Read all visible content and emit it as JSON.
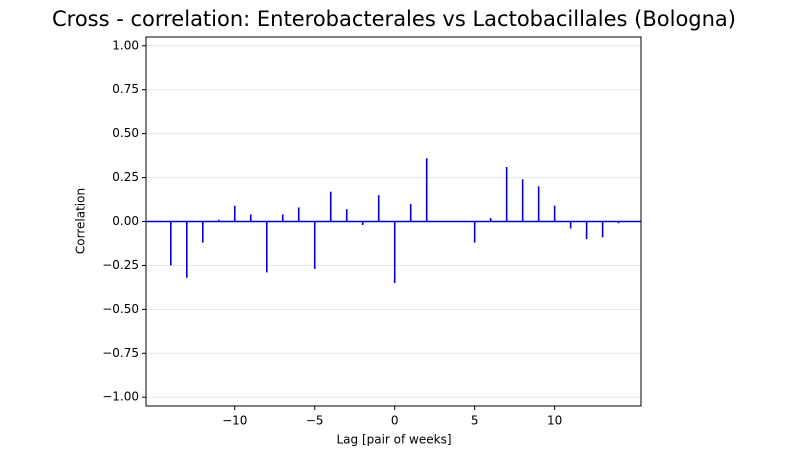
{
  "chart_data": {
    "type": "stem",
    "title": "Cross - correlation: Enterobacterales vs Lactobacillales (Bologna)",
    "xlabel": "Lag [pair of weeks]",
    "ylabel": "Correlation",
    "x": [
      -14,
      -13,
      -12,
      -11,
      -10,
      -9,
      -8,
      -7,
      -6,
      -5,
      -4,
      -3,
      -2,
      -1,
      0,
      1,
      2,
      3,
      4,
      5,
      6,
      7,
      8,
      9,
      10,
      11,
      12,
      13,
      14
    ],
    "values": [
      -0.25,
      -0.32,
      -0.12,
      0.01,
      0.09,
      0.04,
      -0.29,
      0.04,
      0.08,
      -0.27,
      0.17,
      0.07,
      -0.02,
      0.15,
      -0.35,
      0.1,
      0.36,
      0,
      0,
      -0.12,
      0.02,
      0.31,
      0.24,
      0.2,
      0.09,
      -0.04,
      -0.1,
      -0.09,
      -0.01
    ],
    "color": "#0000cc",
    "xlim": [
      -15.55,
      15.4
    ],
    "ylim": [
      -1.05,
      1.05
    ],
    "xticks": [
      {
        "value": -10,
        "label": "−10"
      },
      {
        "value": -5,
        "label": "−5"
      },
      0,
      5,
      10
    ],
    "yticks": [
      {
        "value": -1,
        "label": "−1.00"
      },
      {
        "value": -0.75,
        "label": "−0.75"
      },
      {
        "value": -0.5,
        "label": "−0.50"
      },
      {
        "value": -0.25,
        "label": "−0.25"
      },
      {
        "value": 0,
        "label": "0.00"
      },
      {
        "value": 0.25,
        "label": "0.25"
      },
      {
        "value": 0.5,
        "label": "0.50"
      },
      {
        "value": 0.75,
        "label": "0.75"
      },
      {
        "value": 1,
        "label": "1.00"
      }
    ],
    "grid": "y"
  }
}
